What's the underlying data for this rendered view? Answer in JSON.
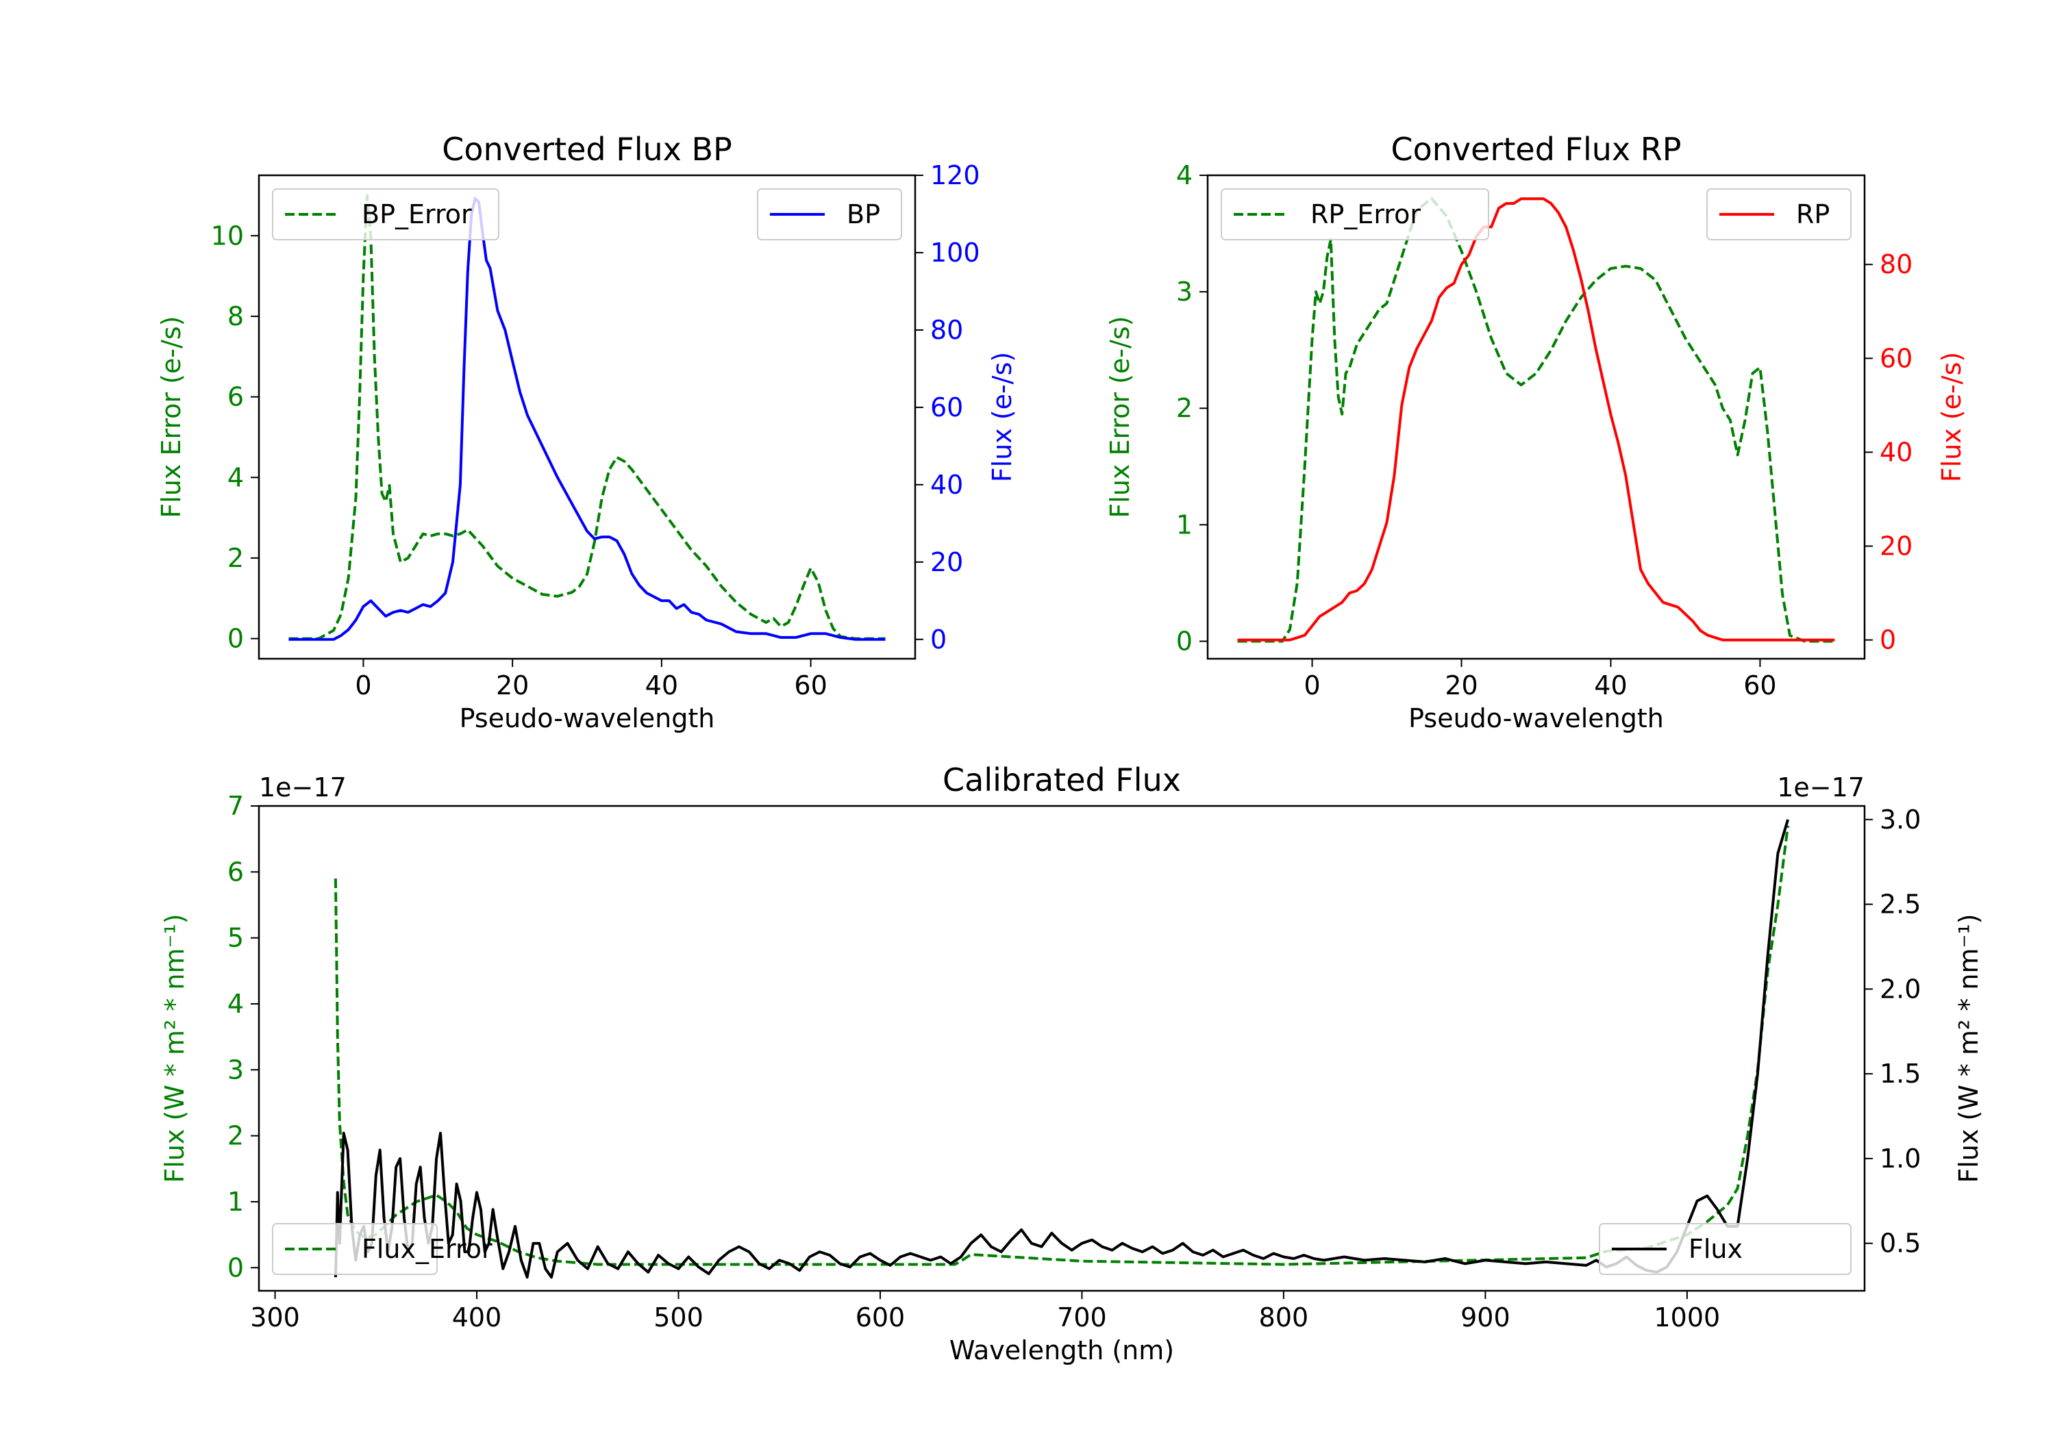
{
  "figure": {
    "background": "#ffffff"
  },
  "chart_data": [
    {
      "id": "bp",
      "type": "line",
      "title": "Converted Flux BP",
      "xlabel": "Pseudo-wavelength",
      "xlim": [
        -14,
        74
      ],
      "xticks": [
        0,
        20,
        40,
        60
      ],
      "left_axis": {
        "label": "Flux Error (e-/s)",
        "color": "#008000",
        "lim": [
          -0.5,
          11.5
        ],
        "ticks": [
          0,
          2,
          4,
          6,
          8,
          10
        ]
      },
      "right_axis": {
        "label": "Flux (e-/s)",
        "color": "#0000ff",
        "lim": [
          -5,
          120
        ],
        "ticks": [
          0,
          20,
          40,
          60,
          80,
          100,
          120
        ]
      },
      "series": [
        {
          "name": "BP_Error",
          "axis": "left",
          "color": "#008000",
          "style": "dashed",
          "x": [
            -10,
            -6,
            -4,
            -3,
            -2,
            -1,
            -0.5,
            0,
            0.5,
            1,
            1.5,
            2,
            2.5,
            3,
            3.5,
            4,
            5,
            6,
            7,
            8,
            9,
            10,
            11,
            12,
            13,
            14,
            15,
            16,
            18,
            20,
            22,
            24,
            26,
            28,
            29,
            30,
            31,
            32,
            33,
            34,
            35,
            36,
            38,
            40,
            42,
            44,
            46,
            48,
            50,
            52,
            54,
            55,
            56,
            57,
            58,
            59,
            60,
            61,
            62,
            63,
            64,
            66,
            70
          ],
          "y": [
            0,
            0,
            0.2,
            0.6,
            1.5,
            3.5,
            6,
            9,
            11,
            10,
            7,
            5,
            3.6,
            3.4,
            3.8,
            2.6,
            1.9,
            2,
            2.3,
            2.6,
            2.55,
            2.6,
            2.6,
            2.55,
            2.6,
            2.7,
            2.5,
            2.3,
            1.8,
            1.5,
            1.3,
            1.1,
            1.05,
            1.15,
            1.3,
            1.6,
            2.4,
            3.5,
            4.2,
            4.5,
            4.4,
            4.2,
            3.7,
            3.2,
            2.7,
            2.2,
            1.8,
            1.3,
            0.9,
            0.6,
            0.4,
            0.5,
            0.3,
            0.4,
            0.8,
            1.3,
            1.75,
            1.4,
            0.7,
            0.25,
            0.05,
            0,
            0
          ]
        },
        {
          "name": "BP",
          "axis": "right",
          "color": "#0000ff",
          "style": "solid",
          "x": [
            -10,
            -6,
            -4,
            -3,
            -2,
            -1,
            0,
            1,
            2,
            3,
            4,
            5,
            6,
            7,
            8,
            9,
            10,
            11,
            12,
            13,
            13.5,
            14,
            14.5,
            15,
            15.5,
            16,
            16.5,
            17,
            18,
            19,
            20,
            21,
            22,
            24,
            26,
            28,
            30,
            31,
            32,
            33,
            34,
            35,
            36,
            37,
            38,
            40,
            41,
            42,
            43,
            44,
            45,
            46,
            48,
            50,
            52,
            54,
            56,
            58,
            60,
            62,
            64,
            66,
            70
          ],
          "y": [
            0,
            0,
            0,
            1,
            2.5,
            5,
            8.5,
            10,
            8,
            6,
            7,
            7.5,
            7,
            8,
            9,
            8.5,
            10,
            12,
            20,
            40,
            70,
            95,
            110,
            114,
            113,
            105,
            98,
            96,
            85,
            80,
            72,
            64,
            58,
            50,
            42,
            35,
            28,
            26,
            26.5,
            26.5,
            25.5,
            22,
            17,
            14,
            12,
            10,
            10,
            8,
            9,
            7,
            6.5,
            5,
            4,
            2,
            1.5,
            1.5,
            0.5,
            0.5,
            1.5,
            1.5,
            0.5,
            0,
            0
          ]
        }
      ]
    },
    {
      "id": "rp",
      "type": "line",
      "title": "Converted Flux RP",
      "xlabel": "Pseudo-wavelength",
      "xlim": [
        -14,
        74
      ],
      "xticks": [
        0,
        20,
        40,
        60
      ],
      "left_axis": {
        "label": "Flux Error (e-/s)",
        "color": "#008000",
        "lim": [
          -0.15,
          4
        ],
        "ticks": [
          0,
          1,
          2,
          3,
          4
        ]
      },
      "right_axis": {
        "label": "Flux (e-/s)",
        "color": "#ff0000",
        "lim": [
          -4,
          99
        ],
        "ticks": [
          0,
          20,
          40,
          60,
          80
        ]
      },
      "series": [
        {
          "name": "RP_Error",
          "axis": "left",
          "color": "#008000",
          "style": "dashed",
          "x": [
            -10,
            -4,
            -3,
            -2,
            -1,
            0,
            0.5,
            1,
            1.5,
            2,
            2.5,
            3,
            3.5,
            4,
            4.5,
            5,
            6,
            7,
            8,
            9,
            10,
            12,
            14,
            16,
            18,
            20,
            22,
            24,
            26,
            28,
            30,
            32,
            34,
            36,
            38,
            40,
            42,
            44,
            46,
            48,
            50,
            52,
            54,
            55,
            56,
            57,
            58,
            59,
            60,
            61,
            62,
            63,
            64,
            66,
            70
          ],
          "y": [
            0,
            0,
            0.1,
            0.5,
            1.5,
            2.6,
            3,
            2.9,
            3,
            3.3,
            3.45,
            2.6,
            2.1,
            1.95,
            2.3,
            2.35,
            2.55,
            2.65,
            2.75,
            2.85,
            2.9,
            3.3,
            3.7,
            3.8,
            3.65,
            3.35,
            3,
            2.6,
            2.3,
            2.2,
            2.3,
            2.5,
            2.75,
            2.95,
            3.1,
            3.2,
            3.22,
            3.2,
            3.1,
            2.85,
            2.6,
            2.4,
            2.2,
            2.0,
            1.9,
            1.6,
            1.9,
            2.3,
            2.35,
            1.8,
            1.1,
            0.4,
            0.05,
            0,
            0
          ]
        },
        {
          "name": "RP",
          "axis": "right",
          "color": "#ff0000",
          "style": "solid",
          "x": [
            -10,
            -4,
            -3,
            -2,
            -1,
            0,
            1,
            2,
            3,
            4,
            5,
            6,
            7,
            8,
            9,
            10,
            11,
            12,
            13,
            14,
            15,
            16,
            17,
            18,
            19,
            20,
            21,
            22,
            23,
            24,
            25,
            26,
            27,
            28,
            29,
            30,
            31,
            32,
            33,
            34,
            35,
            36,
            37,
            38,
            39,
            40,
            41,
            42,
            43,
            44,
            45,
            46,
            47,
            48,
            49,
            50,
            51,
            52,
            53,
            54,
            55,
            56,
            57,
            58,
            59,
            60,
            61,
            62,
            64,
            66,
            70
          ],
          "y": [
            0,
            0,
            0,
            0.5,
            1,
            3,
            5,
            6,
            7,
            8,
            10,
            10.5,
            12,
            15,
            20,
            25,
            35,
            50,
            58,
            62,
            65,
            68,
            73,
            75,
            76,
            80,
            82,
            86,
            88,
            88,
            92,
            93,
            93,
            94,
            94,
            94,
            94,
            93,
            91,
            88,
            83,
            77,
            70,
            62,
            55,
            48,
            42,
            35,
            25,
            15,
            12,
            10,
            8,
            7.5,
            7,
            5.5,
            4,
            2,
            1,
            0.5,
            0,
            0,
            0,
            0,
            0,
            0,
            0,
            0,
            0,
            0,
            0
          ]
        }
      ]
    },
    {
      "id": "cal",
      "type": "line",
      "title": "Calibrated Flux",
      "xlabel": "Wavelength (nm)",
      "xlim": [
        292,
        1088
      ],
      "xticks": [
        300,
        400,
        500,
        600,
        700,
        800,
        900,
        1000
      ],
      "left_axis": {
        "label": "Flux (W * m² * nm⁻¹)",
        "color": "#008000",
        "lim": [
          -0.35,
          7
        ],
        "ticks": [
          0,
          1,
          2,
          3,
          4,
          5,
          6,
          7
        ],
        "offset_text": "1e−17"
      },
      "right_axis": {
        "label": "Flux (W * m² * nm⁻¹)",
        "color": "#000000",
        "lim": [
          0.22,
          3.08
        ],
        "ticks": [
          0.5,
          1.0,
          1.5,
          2.0,
          2.5,
          3.0
        ],
        "tick_labels": [
          "0.5",
          "1.0",
          "1.5",
          "2.0",
          "2.5",
          "3.0"
        ],
        "offset_text": "1e−17"
      },
      "series": [
        {
          "name": "Flux_Error",
          "axis": "left",
          "color": "#008000",
          "style": "dashed",
          "x": [
            330,
            331,
            332,
            334,
            336,
            340,
            345,
            350,
            355,
            360,
            365,
            370,
            375,
            380,
            385,
            390,
            395,
            400,
            410,
            420,
            430,
            440,
            460,
            500,
            600,
            637,
            640,
            645,
            700,
            800,
            950,
            960,
            980,
            1000,
            1010,
            1020,
            1025,
            1030,
            1035,
            1040,
            1045,
            1050
          ],
          "y": [
            5.9,
            3.5,
            2.2,
            1.3,
            0.8,
            0.55,
            0.45,
            0.5,
            0.65,
            0.8,
            0.9,
            1.0,
            1.05,
            1.1,
            1.0,
            0.85,
            0.6,
            0.5,
            0.4,
            0.25,
            0.15,
            0.1,
            0.05,
            0.05,
            0.05,
            0.05,
            0.1,
            0.2,
            0.1,
            0.05,
            0.15,
            0.25,
            0.3,
            0.5,
            0.7,
            0.95,
            1.2,
            2.0,
            3.0,
            4.5,
            5.5,
            6.7
          ]
        },
        {
          "name": "Flux",
          "axis": "right",
          "color": "#000000",
          "style": "solid",
          "x": [
            330,
            331,
            332,
            334,
            336,
            338,
            340,
            342,
            344,
            346,
            348,
            350,
            352,
            354,
            356,
            358,
            360,
            362,
            364,
            366,
            368,
            370,
            372,
            374,
            376,
            378,
            380,
            382,
            384,
            386,
            388,
            390,
            392,
            394,
            396,
            398,
            400,
            402,
            404,
            406,
            408,
            410,
            413,
            416,
            419,
            422,
            425,
            428,
            431,
            434,
            437,
            440,
            445,
            450,
            455,
            460,
            465,
            470,
            475,
            480,
            485,
            490,
            495,
            500,
            505,
            510,
            515,
            520,
            525,
            530,
            535,
            540,
            545,
            550,
            555,
            560,
            565,
            570,
            575,
            580,
            585,
            590,
            595,
            600,
            605,
            610,
            615,
            620,
            625,
            630,
            635,
            640,
            645,
            650,
            655,
            660,
            665,
            670,
            675,
            680,
            685,
            690,
            695,
            700,
            705,
            710,
            715,
            720,
            725,
            730,
            735,
            740,
            745,
            750,
            755,
            760,
            765,
            770,
            775,
            780,
            785,
            790,
            795,
            800,
            805,
            810,
            815,
            820,
            830,
            840,
            850,
            860,
            870,
            880,
            890,
            900,
            910,
            920,
            930,
            940,
            950,
            955,
            960,
            965,
            970,
            975,
            980,
            985,
            990,
            995,
            1000,
            1005,
            1010,
            1015,
            1020,
            1025,
            1030,
            1035,
            1040,
            1045,
            1050
          ],
          "y": [
            0.3,
            0.8,
            0.5,
            1.15,
            1.05,
            0.6,
            0.4,
            0.55,
            0.6,
            0.45,
            0.5,
            0.9,
            1.05,
            0.65,
            0.45,
            0.6,
            0.95,
            1.0,
            0.65,
            0.45,
            0.5,
            0.85,
            0.95,
            0.65,
            0.5,
            0.6,
            1.0,
            1.15,
            0.8,
            0.5,
            0.55,
            0.85,
            0.75,
            0.45,
            0.45,
            0.65,
            0.8,
            0.7,
            0.45,
            0.5,
            0.7,
            0.55,
            0.35,
            0.45,
            0.6,
            0.4,
            0.3,
            0.5,
            0.5,
            0.35,
            0.3,
            0.45,
            0.5,
            0.4,
            0.35,
            0.48,
            0.38,
            0.35,
            0.45,
            0.38,
            0.33,
            0.43,
            0.38,
            0.35,
            0.42,
            0.36,
            0.32,
            0.4,
            0.45,
            0.48,
            0.45,
            0.38,
            0.35,
            0.4,
            0.38,
            0.34,
            0.42,
            0.45,
            0.43,
            0.38,
            0.36,
            0.42,
            0.44,
            0.4,
            0.37,
            0.42,
            0.44,
            0.42,
            0.4,
            0.42,
            0.38,
            0.42,
            0.5,
            0.55,
            0.48,
            0.45,
            0.52,
            0.58,
            0.5,
            0.48,
            0.56,
            0.5,
            0.46,
            0.5,
            0.52,
            0.48,
            0.46,
            0.5,
            0.47,
            0.45,
            0.48,
            0.44,
            0.46,
            0.5,
            0.45,
            0.43,
            0.46,
            0.42,
            0.44,
            0.46,
            0.43,
            0.41,
            0.44,
            0.42,
            0.41,
            0.43,
            0.41,
            0.4,
            0.42,
            0.4,
            0.41,
            0.4,
            0.39,
            0.41,
            0.38,
            0.4,
            0.39,
            0.38,
            0.39,
            0.38,
            0.37,
            0.4,
            0.36,
            0.38,
            0.42,
            0.37,
            0.34,
            0.33,
            0.36,
            0.45,
            0.6,
            0.75,
            0.78,
            0.7,
            0.6,
            0.6,
            1.0,
            1.5,
            2.2,
            2.8,
            3.0
          ]
        }
      ]
    }
  ]
}
